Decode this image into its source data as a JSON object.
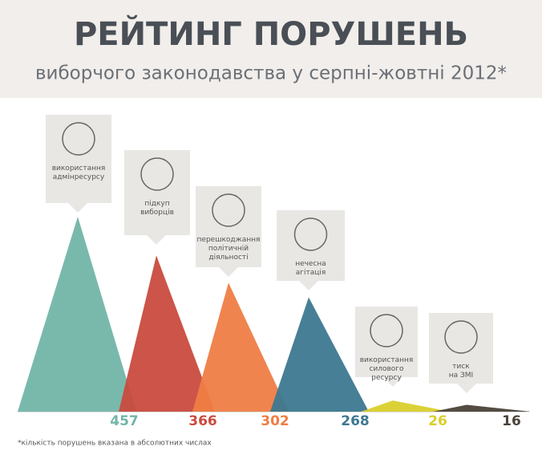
{
  "chart_data": {
    "type": "triangle",
    "title": "РЕЙТИНГ ПОРУШЕНЬ",
    "subtitle": "виборчого законодавства у серпні-жовтні 2012*",
    "footnote": "*кількість порушень вказана в абсолютних числах",
    "categories": [
      "використання\nадмінресурсу",
      "підкуп\nвиборців",
      "перешкоджання\nполітичній\nдіяльності",
      "нечесна\nагітація",
      "використання\nсилового ресурсу",
      "тиск\nна ЗМІ"
    ],
    "values": [
      457,
      366,
      302,
      268,
      26,
      16
    ],
    "colors": [
      "#72b5a8",
      "#c94b3f",
      "#ef7d45",
      "#3c7890",
      "#d9cf2c",
      "#4b4239"
    ]
  }
}
